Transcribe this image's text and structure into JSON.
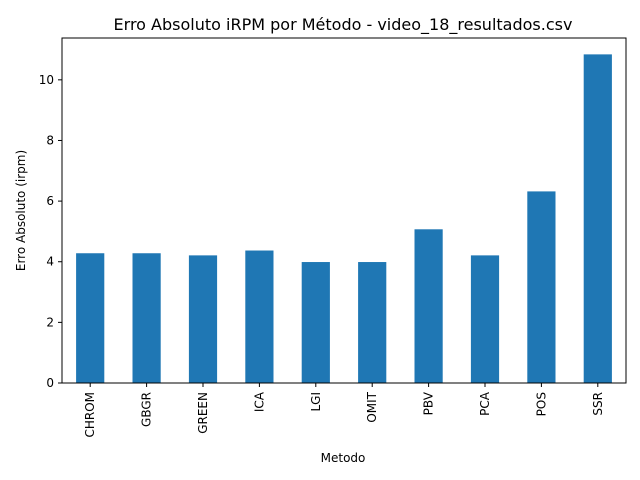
{
  "chart_data": {
    "type": "bar",
    "title": "Erro Absoluto iRPM por Método - video_18_resultados.csv",
    "xlabel": "Metodo",
    "ylabel": "Erro Absoluto (irpm)",
    "categories": [
      "CHROM",
      "GBGR",
      "GREEN",
      "ICA",
      "LGI",
      "OMIT",
      "PBV",
      "PCA",
      "POS",
      "SSR"
    ],
    "values": [
      4.28,
      4.28,
      4.21,
      4.37,
      3.99,
      3.99,
      5.07,
      4.21,
      6.32,
      10.84
    ],
    "ylim": [
      0,
      11.38
    ],
    "yticks": [
      0,
      2,
      4,
      6,
      8,
      10
    ],
    "bar_color": "#1f77b4",
    "grid": false,
    "legend": "none"
  }
}
